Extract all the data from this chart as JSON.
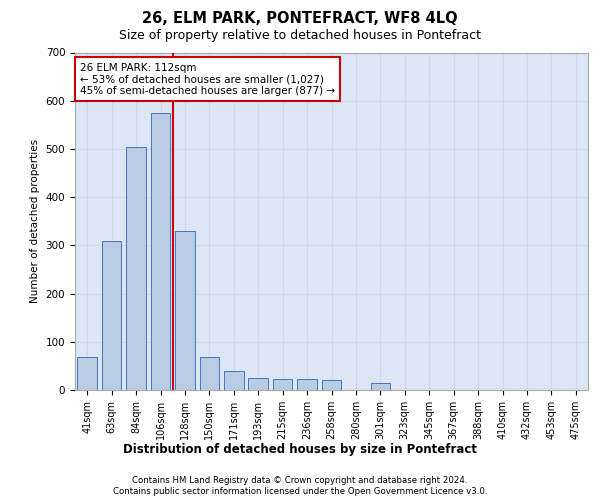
{
  "title1": "26, ELM PARK, PONTEFRACT, WF8 4LQ",
  "title2": "Size of property relative to detached houses in Pontefract",
  "chart_xlabel": "Distribution of detached houses by size in Pontefract",
  "ylabel": "Number of detached properties",
  "bar_color": "#b8cce4",
  "bar_edge_color": "#4472c4",
  "grid_color": "#d0d8e8",
  "bg_color": "#dce6f5",
  "categories": [
    "41sqm",
    "63sqm",
    "84sqm",
    "106sqm",
    "128sqm",
    "150sqm",
    "171sqm",
    "193sqm",
    "215sqm",
    "236sqm",
    "258sqm",
    "280sqm",
    "301sqm",
    "323sqm",
    "345sqm",
    "367sqm",
    "388sqm",
    "410sqm",
    "432sqm",
    "453sqm",
    "475sqm"
  ],
  "values": [
    68,
    310,
    505,
    575,
    330,
    68,
    40,
    25,
    22,
    22,
    20,
    0,
    15,
    0,
    0,
    0,
    0,
    0,
    0,
    0,
    0
  ],
  "annotation_title": "26 ELM PARK: 112sqm",
  "annotation_line1": "← 53% of detached houses are smaller (1,027)",
  "annotation_line2": "45% of semi-detached houses are larger (877) →",
  "annotation_box_color": "#ffffff",
  "annotation_box_edge_color": "#cc0000",
  "vline_color": "#cc0000",
  "ylim": [
    0,
    700
  ],
  "yticks": [
    0,
    100,
    200,
    300,
    400,
    500,
    600,
    700
  ],
  "footer_line1": "Contains HM Land Registry data © Crown copyright and database right 2024.",
  "footer_line2": "Contains public sector information licensed under the Open Government Licence v3.0."
}
